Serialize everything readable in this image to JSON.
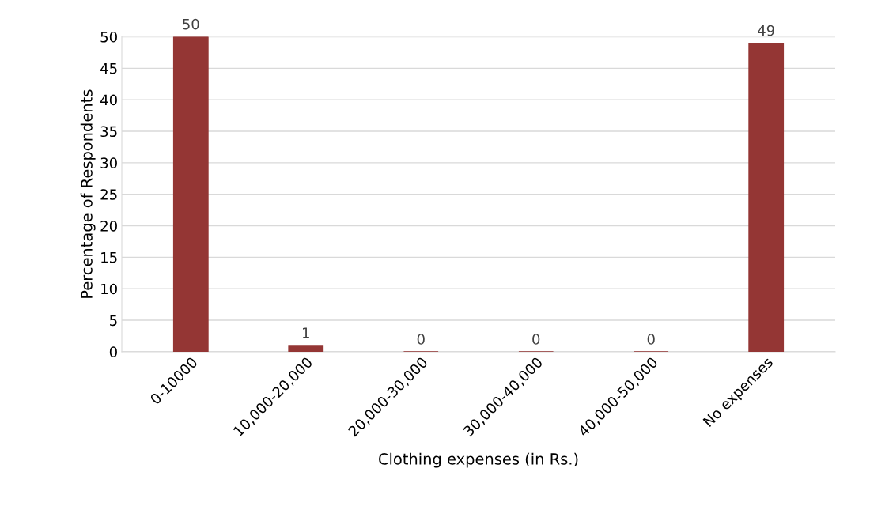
{
  "chart_data": {
    "type": "bar",
    "xlabel": "Clothing expenses (in Rs.)",
    "ylabel": "Percentage of Respondents",
    "categories": [
      "0-10000",
      "10,000-20,000",
      "20,000-30,000",
      "30,000-40,000",
      "40,000-50,000",
      "No expenses"
    ],
    "values": [
      50,
      1,
      0,
      0,
      0,
      49
    ],
    "color": "#943634",
    "ylim": [
      0,
      50
    ],
    "yticks": [
      0,
      5,
      10,
      15,
      20,
      25,
      30,
      35,
      40,
      45,
      50
    ],
    "grid": "y",
    "data_labels": true
  }
}
